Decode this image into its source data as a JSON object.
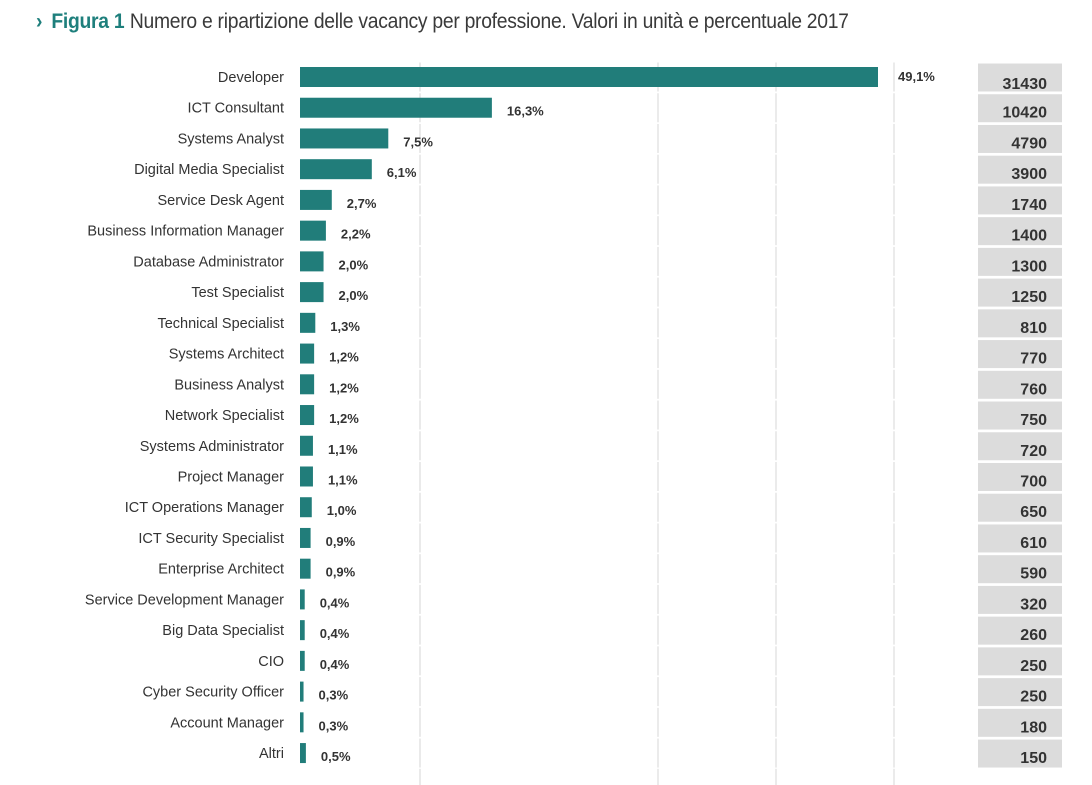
{
  "title": {
    "chevron": "›",
    "figure": "Figura 1",
    "text": "Numero e ripartizione delle vacancy per professione. Valori in unità e percentuale 2017"
  },
  "colors": {
    "bar": "#217d7a",
    "accent": "#1e7f7c",
    "value_box": "#dcdcdc",
    "grid": "#dddddd"
  },
  "chart_data": {
    "type": "bar",
    "orientation": "horizontal",
    "title": "Numero e ripartizione delle vacancy per professione. Valori in unità e percentuale 2017",
    "categories": [
      "Developer",
      "ICT Consultant",
      "Systems Analyst",
      "Digital Media Specialist",
      "Service Desk Agent",
      "Business Information Manager",
      "Database Administrator",
      "Test Specialist",
      "Technical Specialist",
      "Systems Architect",
      "Business Analyst",
      "Network Specialist",
      "Systems Administrator",
      "Project Manager",
      "ICT Operations Manager",
      "ICT Security Specialist",
      "Enterprise Architect",
      "Service Development Manager",
      "Big Data Specialist",
      "CIO",
      "Cyber Security Officer",
      "Account Manager",
      "Altri"
    ],
    "percent": [
      49.1,
      16.3,
      7.5,
      6.1,
      2.7,
      2.2,
      2.0,
      2.0,
      1.3,
      1.2,
      1.2,
      1.2,
      1.1,
      1.1,
      1.0,
      0.9,
      0.9,
      0.4,
      0.4,
      0.4,
      0.3,
      0.3,
      0.5
    ],
    "percent_labels": [
      "49,1%",
      "16,3%",
      "7,5%",
      "6,1%",
      "2,7%",
      "2,2%",
      "2,0%",
      "2,0%",
      "1,3%",
      "1,2%",
      "1,2%",
      "1,2%",
      "1,1%",
      "1,1%",
      "1,0%",
      "0,9%",
      "0,9%",
      "0,4%",
      "0,4%",
      "0,4%",
      "0,3%",
      "0,3%",
      "0,5%"
    ],
    "values": [
      31430,
      10420,
      4790,
      3900,
      1740,
      1400,
      1300,
      1250,
      810,
      770,
      760,
      750,
      720,
      700,
      650,
      610,
      590,
      320,
      260,
      250,
      250,
      180,
      150
    ],
    "xlim": [
      0,
      50
    ],
    "grid": true
  }
}
